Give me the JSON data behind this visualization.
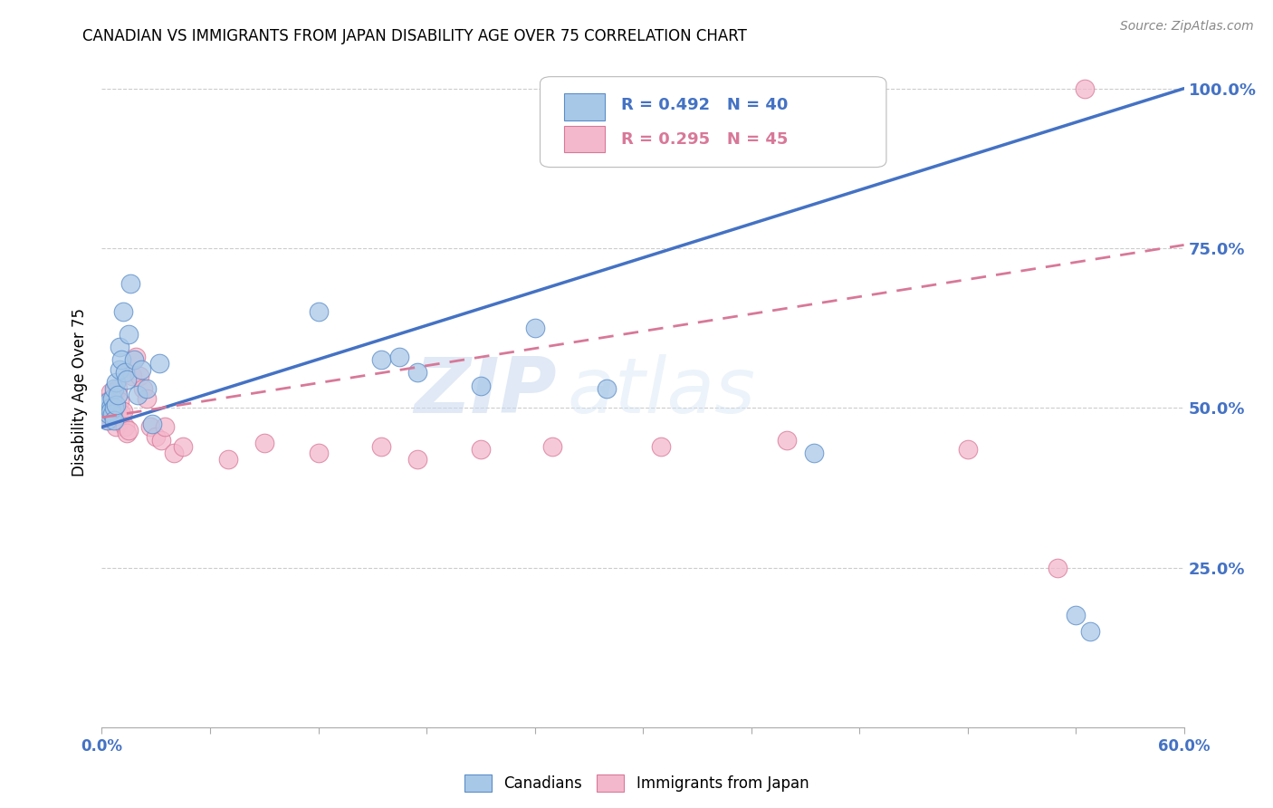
{
  "title": "CANADIAN VS IMMIGRANTS FROM JAPAN DISABILITY AGE OVER 75 CORRELATION CHART",
  "source": "Source: ZipAtlas.com",
  "ylabel": "Disability Age Over 75",
  "legend_label1": "Canadians",
  "legend_label2": "Immigrants from Japan",
  "R1": "R = 0.492",
  "N1": "N = 40",
  "R2": "R = 0.295",
  "N2": "N = 45",
  "color_blue_fill": "#a8c8e8",
  "color_blue_edge": "#5b8cc8",
  "color_blue_line": "#4472c4",
  "color_pink_fill": "#f4b8cc",
  "color_pink_edge": "#d87898",
  "color_pink_line": "#d87898",
  "watermark_zip": "ZIP",
  "watermark_atlas": "atlas",
  "xlim": [
    0.0,
    0.6
  ],
  "ylim": [
    0.0,
    1.05
  ],
  "yticks": [
    0.25,
    0.5,
    0.75,
    1.0
  ],
  "ytick_labels": [
    "25.0%",
    "50.0%",
    "75.0%",
    "100.0%"
  ],
  "can_line_x0": 0.0,
  "can_line_y0": 0.47,
  "can_line_x1": 0.6,
  "can_line_y1": 1.0,
  "jpn_line_x0": 0.0,
  "jpn_line_y0": 0.485,
  "jpn_line_x1": 0.6,
  "jpn_line_y1": 0.755,
  "can_x": [
    0.001,
    0.002,
    0.003,
    0.003,
    0.004,
    0.004,
    0.005,
    0.005,
    0.006,
    0.006,
    0.007,
    0.007,
    0.007,
    0.008,
    0.008,
    0.009,
    0.01,
    0.01,
    0.011,
    0.012,
    0.013,
    0.014,
    0.015,
    0.016,
    0.018,
    0.02,
    0.022,
    0.025,
    0.028,
    0.032,
    0.12,
    0.155,
    0.165,
    0.175,
    0.21,
    0.24,
    0.28,
    0.395,
    0.54,
    0.548
  ],
  "can_y": [
    0.495,
    0.5,
    0.48,
    0.505,
    0.49,
    0.51,
    0.5,
    0.495,
    0.515,
    0.49,
    0.53,
    0.5,
    0.48,
    0.54,
    0.505,
    0.52,
    0.56,
    0.595,
    0.575,
    0.65,
    0.555,
    0.545,
    0.615,
    0.695,
    0.575,
    0.52,
    0.56,
    0.53,
    0.475,
    0.57,
    0.65,
    0.575,
    0.58,
    0.555,
    0.535,
    0.625,
    0.53,
    0.43,
    0.175,
    0.15
  ],
  "jpn_x": [
    0.001,
    0.002,
    0.003,
    0.004,
    0.004,
    0.005,
    0.005,
    0.006,
    0.006,
    0.007,
    0.007,
    0.008,
    0.008,
    0.009,
    0.009,
    0.01,
    0.01,
    0.011,
    0.012,
    0.013,
    0.014,
    0.015,
    0.017,
    0.019,
    0.021,
    0.023,
    0.025,
    0.027,
    0.03,
    0.033,
    0.035,
    0.04,
    0.045,
    0.07,
    0.09,
    0.12,
    0.155,
    0.175,
    0.21,
    0.25,
    0.31,
    0.38,
    0.48,
    0.53,
    0.545
  ],
  "jpn_y": [
    0.495,
    0.49,
    0.51,
    0.5,
    0.48,
    0.51,
    0.525,
    0.49,
    0.51,
    0.525,
    0.495,
    0.47,
    0.5,
    0.49,
    0.53,
    0.48,
    0.51,
    0.49,
    0.495,
    0.47,
    0.46,
    0.465,
    0.55,
    0.58,
    0.55,
    0.53,
    0.515,
    0.47,
    0.455,
    0.45,
    0.47,
    0.43,
    0.44,
    0.42,
    0.445,
    0.43,
    0.44,
    0.42,
    0.435,
    0.44,
    0.44,
    0.45,
    0.435,
    0.25,
    1.0
  ]
}
